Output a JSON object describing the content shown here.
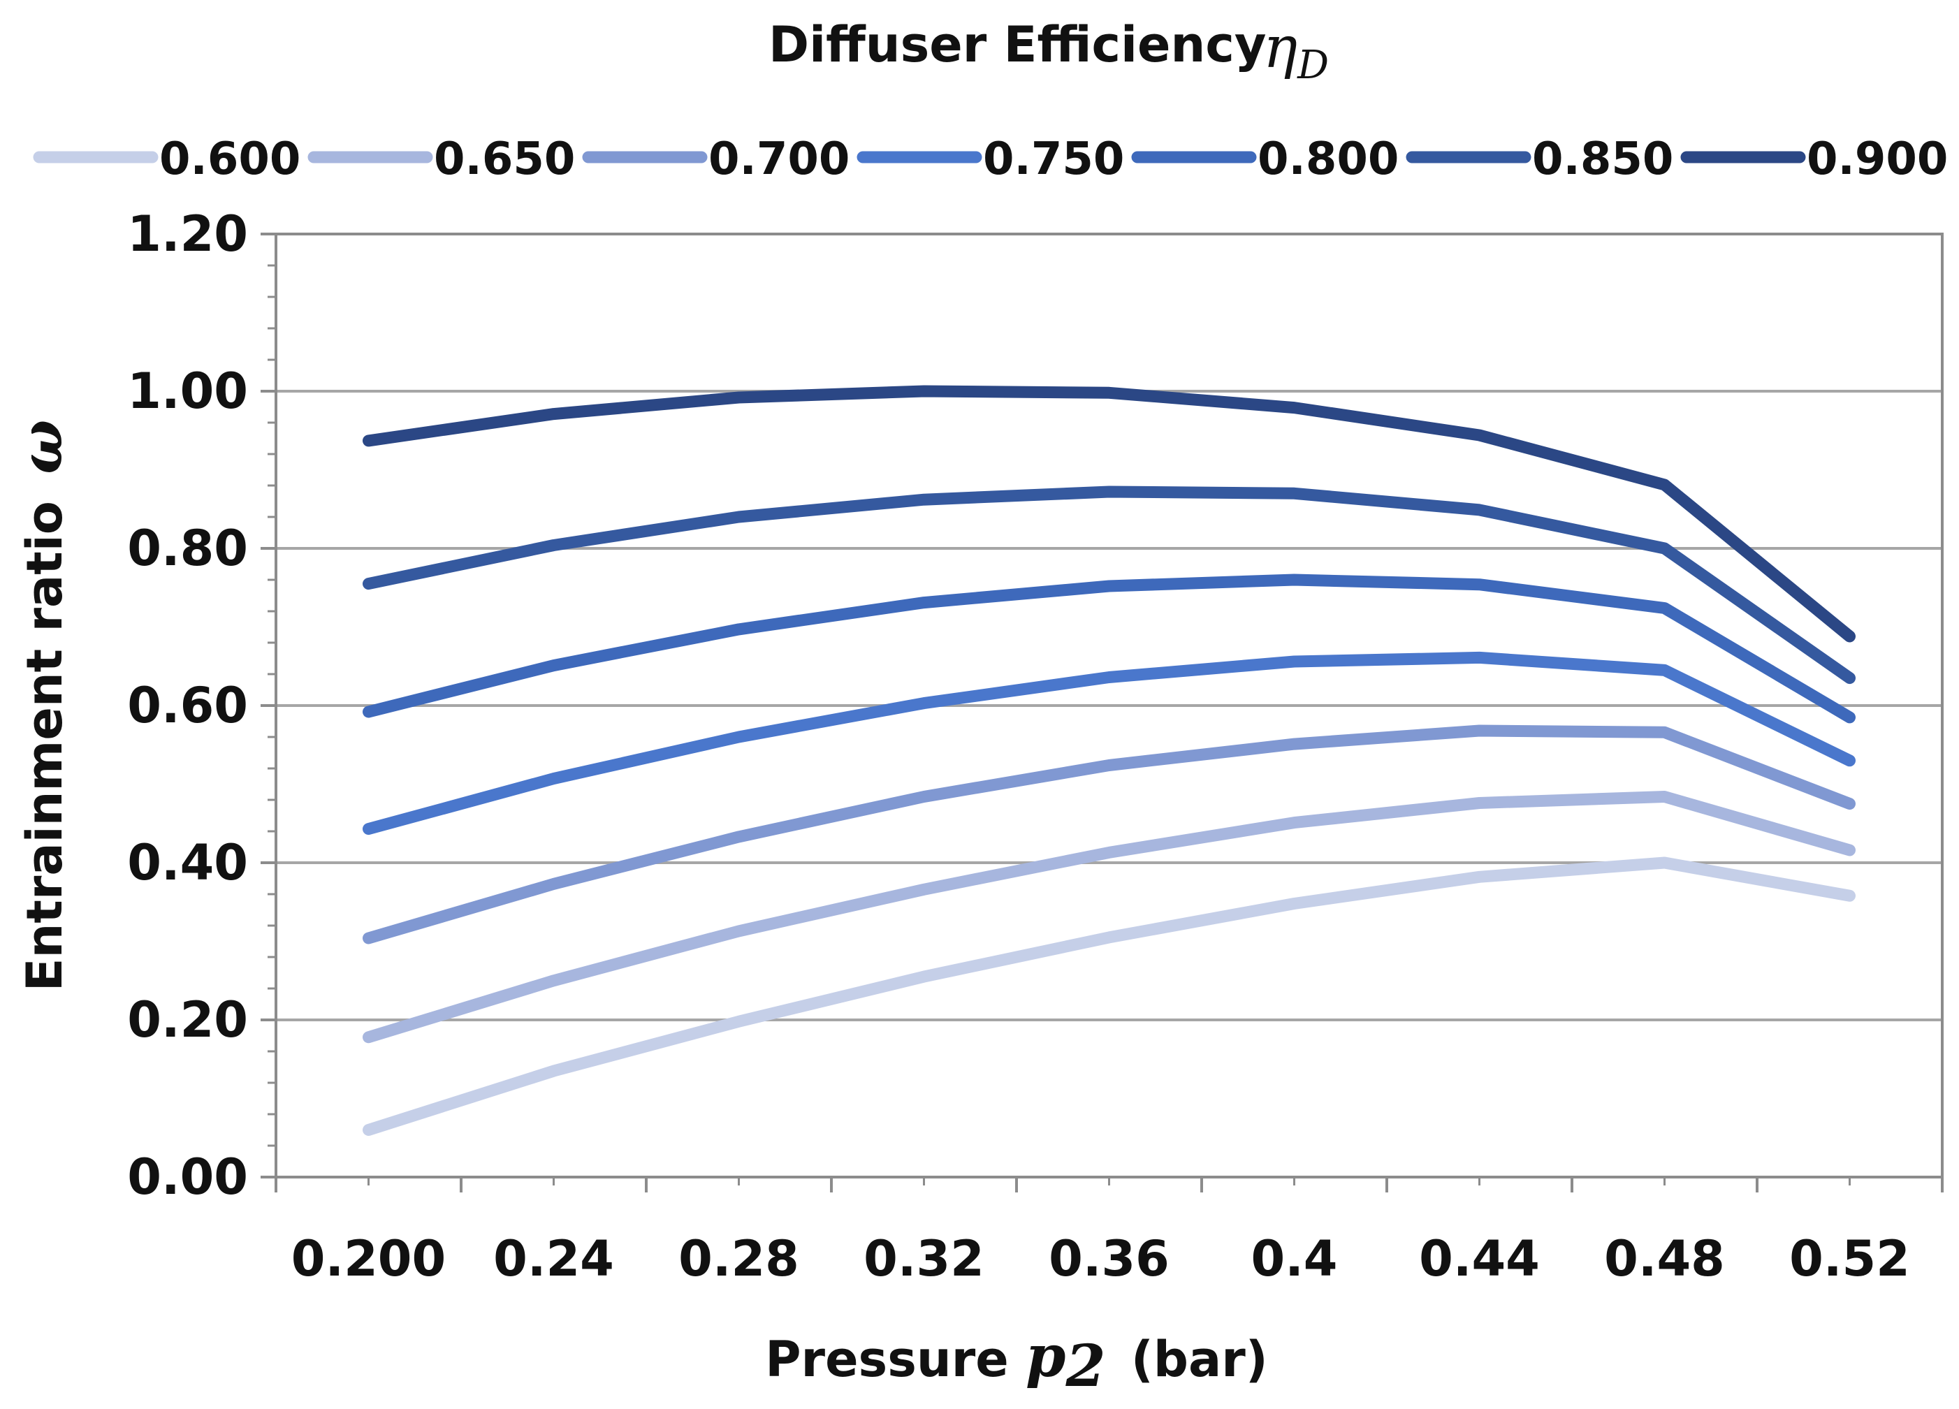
{
  "chart_data": {
    "type": "line",
    "legend_title": "Diffuser Efficiency",
    "legend_title_symbol": "η",
    "legend_title_symbol_sub": "D",
    "legend_position": "top",
    "xlabel_prefix": "Pressure",
    "xlabel_symbol": "p",
    "xlabel_symbol_sub": "2",
    "xlabel_suffix": "(bar)",
    "ylabel": "Entrainment ratio",
    "ylabel_symbol": "ω",
    "categories": [
      "0.200",
      "0.24",
      "0.28",
      "0.32",
      "0.36",
      "0.4",
      "0.44",
      "0.48",
      "0.52"
    ],
    "ylim": [
      0,
      1.2
    ],
    "yticks": [
      "0.00",
      "0.20",
      "0.40",
      "0.60",
      "0.80",
      "1.00",
      "1.20"
    ],
    "grid": true,
    "series": [
      {
        "name": "0.600",
        "color": "#c5cfe8",
        "values": [
          0.06,
          0.135,
          0.198,
          0.255,
          0.305,
          0.348,
          0.382,
          0.4,
          0.358
        ]
      },
      {
        "name": "0.650",
        "color": "#a7b6de",
        "values": [
          0.178,
          0.25,
          0.313,
          0.366,
          0.413,
          0.451,
          0.476,
          0.484,
          0.416
        ]
      },
      {
        "name": "0.700",
        "color": "#8098d2",
        "values": [
          0.304,
          0.373,
          0.433,
          0.484,
          0.524,
          0.551,
          0.568,
          0.566,
          0.475
        ]
      },
      {
        "name": "0.750",
        "color": "#4a77cc",
        "values": [
          0.443,
          0.507,
          0.56,
          0.603,
          0.636,
          0.656,
          0.661,
          0.645,
          0.53
        ]
      },
      {
        "name": "0.800",
        "color": "#3e69bb",
        "values": [
          0.592,
          0.651,
          0.697,
          0.731,
          0.752,
          0.76,
          0.754,
          0.724,
          0.585
        ]
      },
      {
        "name": "0.850",
        "color": "#35599f",
        "values": [
          0.755,
          0.804,
          0.84,
          0.862,
          0.872,
          0.87,
          0.849,
          0.8,
          0.635
        ]
      },
      {
        "name": "0.900",
        "color": "#2b4785",
        "values": [
          0.937,
          0.971,
          0.992,
          1.0,
          0.998,
          0.979,
          0.944,
          0.881,
          0.688
        ]
      }
    ]
  }
}
